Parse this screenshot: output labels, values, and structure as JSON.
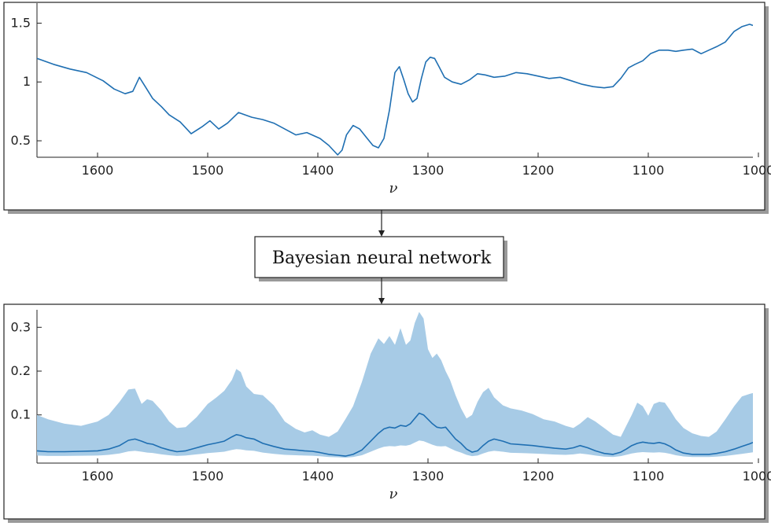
{
  "colors": {
    "line": "#1f6fb2",
    "band": "#a7cbe6",
    "band_inner": "#e9f2fa",
    "frame": "#222222",
    "shadow": "#9a9a9a"
  },
  "model_box": {
    "label": "Bayesian neural network"
  },
  "chart_data": [
    {
      "type": "line",
      "title": "",
      "xlabel": "ν",
      "ylabel": "",
      "xlim": [
        1655,
        1005
      ],
      "ylim": [
        0.36,
        1.67
      ],
      "x_reversed": true,
      "grid": false,
      "xticks": [
        1600,
        1500,
        1400,
        1300,
        1200,
        1100,
        1000
      ],
      "xtick_labels": [
        "1600",
        "1500",
        "1400",
        "1300",
        "1200",
        "1100",
        "1000"
      ],
      "yticks": [
        0.5,
        1,
        1.5
      ],
      "ytick_labels": [
        "0.5",
        "1",
        "1.5"
      ],
      "series": [
        {
          "x": [
            1655,
            1640,
            1625,
            1610,
            1595,
            1585,
            1575,
            1568,
            1562,
            1556,
            1550,
            1542,
            1535,
            1525,
            1515,
            1505,
            1498,
            1490,
            1482,
            1472,
            1466,
            1460,
            1450,
            1440,
            1430,
            1420,
            1410,
            1398,
            1390,
            1382,
            1378,
            1374,
            1368,
            1362,
            1356,
            1350,
            1345,
            1340,
            1335,
            1330,
            1326,
            1322,
            1318,
            1314,
            1310,
            1306,
            1302,
            1298,
            1294,
            1290,
            1285,
            1278,
            1270,
            1262,
            1255,
            1248,
            1240,
            1230,
            1220,
            1210,
            1200,
            1190,
            1180,
            1170,
            1160,
            1150,
            1140,
            1132,
            1125,
            1118,
            1112,
            1105,
            1098,
            1090,
            1082,
            1075,
            1068,
            1060,
            1052,
            1045,
            1038,
            1030,
            1022,
            1015,
            1008,
            1005
          ],
          "y": [
            1.2,
            1.15,
            1.11,
            1.08,
            1.01,
            0.94,
            0.9,
            0.92,
            1.04,
            0.95,
            0.86,
            0.79,
            0.72,
            0.66,
            0.56,
            0.62,
            0.67,
            0.6,
            0.65,
            0.74,
            0.72,
            0.7,
            0.68,
            0.65,
            0.6,
            0.55,
            0.57,
            0.52,
            0.46,
            0.38,
            0.42,
            0.55,
            0.63,
            0.6,
            0.53,
            0.46,
            0.44,
            0.52,
            0.76,
            1.08,
            1.13,
            1.02,
            0.9,
            0.83,
            0.86,
            1.03,
            1.17,
            1.21,
            1.2,
            1.13,
            1.04,
            1.0,
            0.98,
            1.02,
            1.07,
            1.06,
            1.04,
            1.05,
            1.08,
            1.07,
            1.05,
            1.03,
            1.04,
            1.01,
            0.98,
            0.96,
            0.95,
            0.96,
            1.03,
            1.12,
            1.15,
            1.18,
            1.24,
            1.27,
            1.27,
            1.26,
            1.27,
            1.28,
            1.24,
            1.27,
            1.3,
            1.34,
            1.43,
            1.47,
            1.49,
            1.48
          ]
        }
      ]
    },
    {
      "type": "area",
      "title": "",
      "xlabel": "ν",
      "ylabel": "",
      "xlim": [
        1655,
        1005
      ],
      "ylim": [
        -0.01,
        0.34
      ],
      "x_reversed": true,
      "grid": false,
      "xticks": [
        1600,
        1500,
        1400,
        1300,
        1200,
        1100,
        1000
      ],
      "xtick_labels": [
        "1600",
        "1500",
        "1400",
        "1300",
        "1200",
        "1100",
        "1000"
      ],
      "yticks": [
        0.1,
        0.2,
        0.3
      ],
      "ytick_labels": [
        "0.1",
        "0.2",
        "0.3"
      ],
      "series": [
        {
          "x": [
            1655,
            1645,
            1630,
            1615,
            1600,
            1590,
            1580,
            1572,
            1566,
            1560,
            1555,
            1550,
            1542,
            1535,
            1528,
            1520,
            1510,
            1500,
            1492,
            1485,
            1478,
            1474,
            1470,
            1465,
            1458,
            1450,
            1440,
            1430,
            1420,
            1412,
            1405,
            1398,
            1390,
            1382,
            1375,
            1368,
            1360,
            1352,
            1345,
            1340,
            1335,
            1330,
            1325,
            1320,
            1316,
            1312,
            1308,
            1304,
            1300,
            1296,
            1292,
            1288,
            1284,
            1280,
            1275,
            1270,
            1265,
            1260,
            1255,
            1250,
            1245,
            1240,
            1232,
            1225,
            1215,
            1205,
            1195,
            1185,
            1175,
            1168,
            1162,
            1155,
            1148,
            1140,
            1132,
            1125,
            1120,
            1115,
            1110,
            1105,
            1100,
            1095,
            1090,
            1085,
            1080,
            1075,
            1068,
            1060,
            1052,
            1045,
            1038,
            1030,
            1022,
            1015,
            1008,
            1005
          ],
          "y": [
            0.018,
            0.016,
            0.016,
            0.017,
            0.018,
            0.022,
            0.03,
            0.042,
            0.045,
            0.04,
            0.035,
            0.033,
            0.025,
            0.02,
            0.016,
            0.018,
            0.025,
            0.032,
            0.036,
            0.04,
            0.05,
            0.055,
            0.053,
            0.048,
            0.045,
            0.035,
            0.028,
            0.022,
            0.02,
            0.018,
            0.017,
            0.014,
            0.01,
            0.008,
            0.006,
            0.01,
            0.02,
            0.04,
            0.058,
            0.068,
            0.072,
            0.07,
            0.076,
            0.074,
            0.08,
            0.092,
            0.104,
            0.1,
            0.09,
            0.08,
            0.072,
            0.07,
            0.072,
            0.06,
            0.045,
            0.035,
            0.022,
            0.015,
            0.018,
            0.03,
            0.04,
            0.045,
            0.04,
            0.034,
            0.032,
            0.03,
            0.027,
            0.024,
            0.022,
            0.025,
            0.03,
            0.025,
            0.018,
            0.012,
            0.01,
            0.015,
            0.022,
            0.03,
            0.035,
            0.038,
            0.036,
            0.035,
            0.037,
            0.034,
            0.028,
            0.02,
            0.013,
            0.01,
            0.01,
            0.01,
            0.012,
            0.016,
            0.022,
            0.028,
            0.034,
            0.037
          ],
          "upper": [
            0.1,
            0.09,
            0.08,
            0.075,
            0.085,
            0.1,
            0.13,
            0.158,
            0.16,
            0.125,
            0.136,
            0.132,
            0.11,
            0.085,
            0.07,
            0.072,
            0.095,
            0.125,
            0.14,
            0.155,
            0.18,
            0.205,
            0.198,
            0.165,
            0.148,
            0.145,
            0.122,
            0.085,
            0.068,
            0.06,
            0.065,
            0.055,
            0.05,
            0.062,
            0.09,
            0.12,
            0.175,
            0.24,
            0.275,
            0.262,
            0.28,
            0.26,
            0.298,
            0.26,
            0.27,
            0.31,
            0.335,
            0.32,
            0.25,
            0.23,
            0.24,
            0.225,
            0.2,
            0.18,
            0.145,
            0.115,
            0.092,
            0.1,
            0.13,
            0.152,
            0.162,
            0.14,
            0.122,
            0.115,
            0.11,
            0.102,
            0.09,
            0.085,
            0.075,
            0.07,
            0.08,
            0.095,
            0.085,
            0.07,
            0.055,
            0.05,
            0.075,
            0.1,
            0.128,
            0.12,
            0.098,
            0.125,
            0.13,
            0.128,
            0.11,
            0.09,
            0.07,
            0.058,
            0.052,
            0.05,
            0.062,
            0.09,
            0.12,
            0.142,
            0.148,
            0.15
          ]
        }
      ]
    }
  ]
}
